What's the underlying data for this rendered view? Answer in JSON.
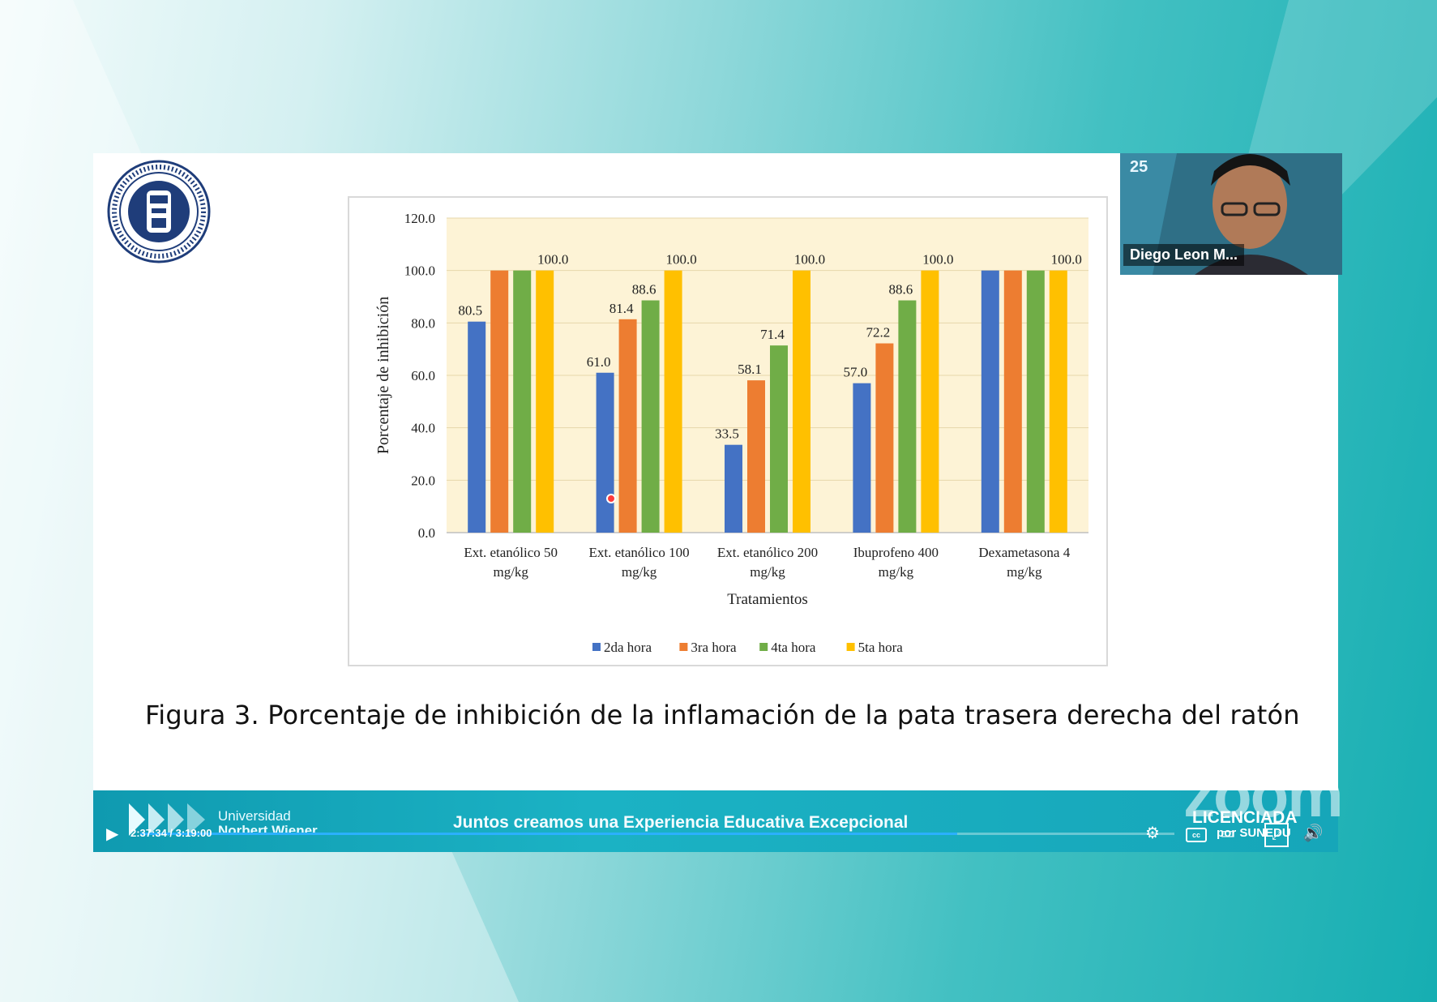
{
  "slide": {
    "caption": "Figura 3. Porcentaje de inhibición de la inflamación de la pata trasera derecha del ratón"
  },
  "chart_data": {
    "type": "bar",
    "title": "",
    "xlabel": "Tratamientos",
    "ylabel": "Porcentaje de inhibición",
    "ylim": [
      0,
      120
    ],
    "yticks": [
      "0.0",
      "20.0",
      "40.0",
      "60.0",
      "80.0",
      "100.0",
      "120.0"
    ],
    "categories": [
      [
        "Ext. etanólico 50",
        "mg/kg"
      ],
      [
        "Ext. etanólico 100",
        "mg/kg"
      ],
      [
        "Ext. etanólico 200",
        "mg/kg"
      ],
      [
        "Ibuprofeno 400",
        "mg/kg"
      ],
      [
        "Dexametasona 4",
        "mg/kg"
      ]
    ],
    "series": [
      {
        "name": "2da  hora",
        "color": "#4472c4",
        "values": [
          80.5,
          61.0,
          33.5,
          57.0,
          100.0
        ],
        "labels": [
          "80.5",
          "61.0",
          "33.5",
          "57.0",
          ""
        ]
      },
      {
        "name": "3ra hora",
        "color": "#ed7d31",
        "values": [
          100.0,
          81.4,
          58.1,
          72.2,
          100.0
        ],
        "labels": [
          "",
          "81.4",
          "58.1",
          "72.2",
          ""
        ]
      },
      {
        "name": "4ta  hora",
        "color": "#70ad47",
        "values": [
          100.0,
          88.6,
          71.4,
          88.6,
          100.0
        ],
        "labels": [
          "",
          "88.6",
          "71.4",
          "88.6",
          ""
        ]
      },
      {
        "name": "5ta hora",
        "color": "#ffc000",
        "values": [
          100.0,
          100.0,
          100.0,
          100.0,
          100.0
        ],
        "labels": [
          "100.0",
          "100.0",
          "100.0",
          "100.0",
          "100.0"
        ]
      }
    ],
    "plot_background": "#fdf3d6",
    "legend_position": "bottom"
  },
  "webcam": {
    "participant_name": "Diego Leon M...",
    "logo_text": "25"
  },
  "footer": {
    "university_line1": "Universidad",
    "university_line2": "Norbert Wiener",
    "slogan": "Juntos creamos una Experiencia Educativa Excepcional",
    "watermark": "zoom",
    "license_line1": "LICENCIADA",
    "license_line2": "por SUNEDU"
  },
  "player": {
    "time": "2:37:34 / 3:19:00",
    "progress": 0.79,
    "cc_label": "cc"
  }
}
